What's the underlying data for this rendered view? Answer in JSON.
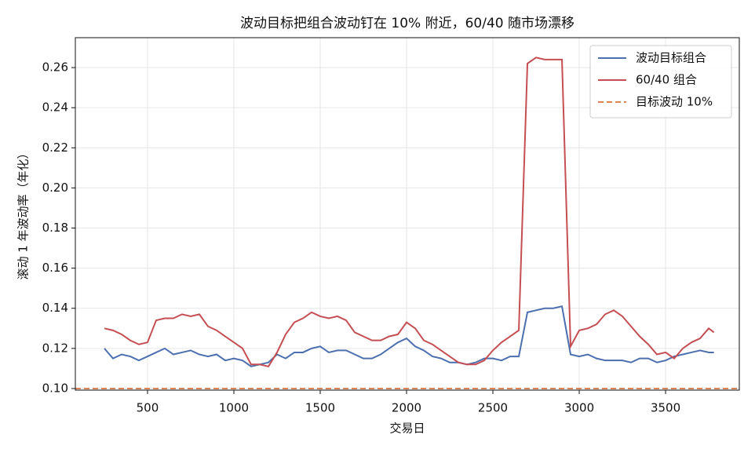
{
  "chart_data": {
    "type": "line",
    "title": "波动目标把组合波动钉在 10% 附近，60/40 随市场漂移",
    "xlabel": "交易日",
    "ylabel": "滚动 1 年波动率（年化）",
    "x": [
      250,
      300,
      350,
      400,
      450,
      500,
      550,
      600,
      650,
      700,
      750,
      800,
      850,
      900,
      950,
      1000,
      1050,
      1100,
      1150,
      1200,
      1250,
      1300,
      1350,
      1400,
      1450,
      1500,
      1550,
      1600,
      1650,
      1700,
      1750,
      1800,
      1850,
      1900,
      1950,
      2000,
      2050,
      2100,
      2150,
      2200,
      2250,
      2300,
      2350,
      2400,
      2450,
      2500,
      2550,
      2600,
      2650,
      2700,
      2750,
      2800,
      2850,
      2900,
      2950,
      3000,
      3050,
      3100,
      3150,
      3200,
      3250,
      3300,
      3350,
      3400,
      3450,
      3500,
      3550,
      3600,
      3650,
      3700,
      3750,
      3780
    ],
    "series": [
      {
        "name": "波动目标组合",
        "color": "#4c6faf",
        "values": [
          0.12,
          0.115,
          0.117,
          0.116,
          0.114,
          0.116,
          0.118,
          0.12,
          0.117,
          0.118,
          0.119,
          0.117,
          0.116,
          0.117,
          0.114,
          0.115,
          0.114,
          0.111,
          0.112,
          0.113,
          0.117,
          0.115,
          0.118,
          0.118,
          0.12,
          0.121,
          0.118,
          0.119,
          0.119,
          0.117,
          0.115,
          0.115,
          0.117,
          0.12,
          0.123,
          0.125,
          0.121,
          0.119,
          0.116,
          0.115,
          0.113,
          0.113,
          0.112,
          0.113,
          0.115,
          0.115,
          0.114,
          0.116,
          0.116,
          0.138,
          0.139,
          0.14,
          0.14,
          0.141,
          0.117,
          0.116,
          0.117,
          0.115,
          0.114,
          0.114,
          0.114,
          0.113,
          0.115,
          0.115,
          0.113,
          0.114,
          0.116,
          0.117,
          0.118,
          0.119,
          0.118,
          0.118
        ]
      },
      {
        "name": "60/40 组合",
        "color": "#c44e52",
        "values": [
          0.13,
          0.129,
          0.127,
          0.124,
          0.122,
          0.123,
          0.134,
          0.135,
          0.135,
          0.137,
          0.136,
          0.137,
          0.131,
          0.129,
          0.126,
          0.123,
          0.12,
          0.112,
          0.112,
          0.111,
          0.118,
          0.127,
          0.133,
          0.135,
          0.138,
          0.136,
          0.135,
          0.136,
          0.134,
          0.128,
          0.126,
          0.124,
          0.124,
          0.126,
          0.127,
          0.133,
          0.13,
          0.124,
          0.122,
          0.119,
          0.116,
          0.113,
          0.112,
          0.112,
          0.114,
          0.119,
          0.123,
          0.126,
          0.129,
          0.262,
          0.265,
          0.264,
          0.264,
          0.264,
          0.121,
          0.129,
          0.13,
          0.132,
          0.137,
          0.139,
          0.136,
          0.131,
          0.126,
          0.122,
          0.117,
          0.118,
          0.115,
          0.12,
          0.123,
          0.125,
          0.13,
          0.128
        ]
      }
    ],
    "hline": {
      "name": "目标波动 10%",
      "color": "#dd8452",
      "value": 0.1
    },
    "xlim": [
      82,
      3927
    ],
    "ylim": [
      0.0992,
      0.2749
    ],
    "xticks": [
      500,
      1000,
      1500,
      2000,
      2500,
      3000,
      3500
    ],
    "yticks": [
      {
        "value": 0.1,
        "label": "0.10"
      },
      0.12,
      0.14,
      0.16,
      0.18,
      {
        "value": 0.2,
        "label": "0.20"
      },
      0.22,
      0.24,
      0.26
    ],
    "grid": true,
    "legend": "upper right"
  }
}
